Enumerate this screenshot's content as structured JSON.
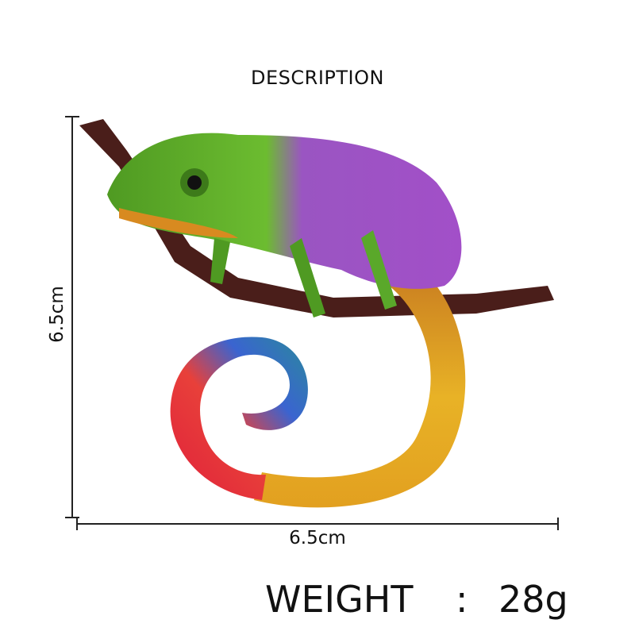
{
  "header": {
    "title": "DESCRIPTION"
  },
  "dimensions": {
    "height_label": "6.5cm",
    "width_label": "6.5cm"
  },
  "weight": {
    "label": "WEIGHT",
    "separator": ":",
    "value": "28g"
  },
  "product": {
    "image": "chameleon-brooch",
    "colors": {
      "head": "#5aa82a",
      "back": "#9b4fc4",
      "tail_orange": "#e0a020",
      "tail_red": "#e02a3a",
      "tail_blue": "#2a5ec8",
      "branch": "#4a1e1a"
    }
  }
}
